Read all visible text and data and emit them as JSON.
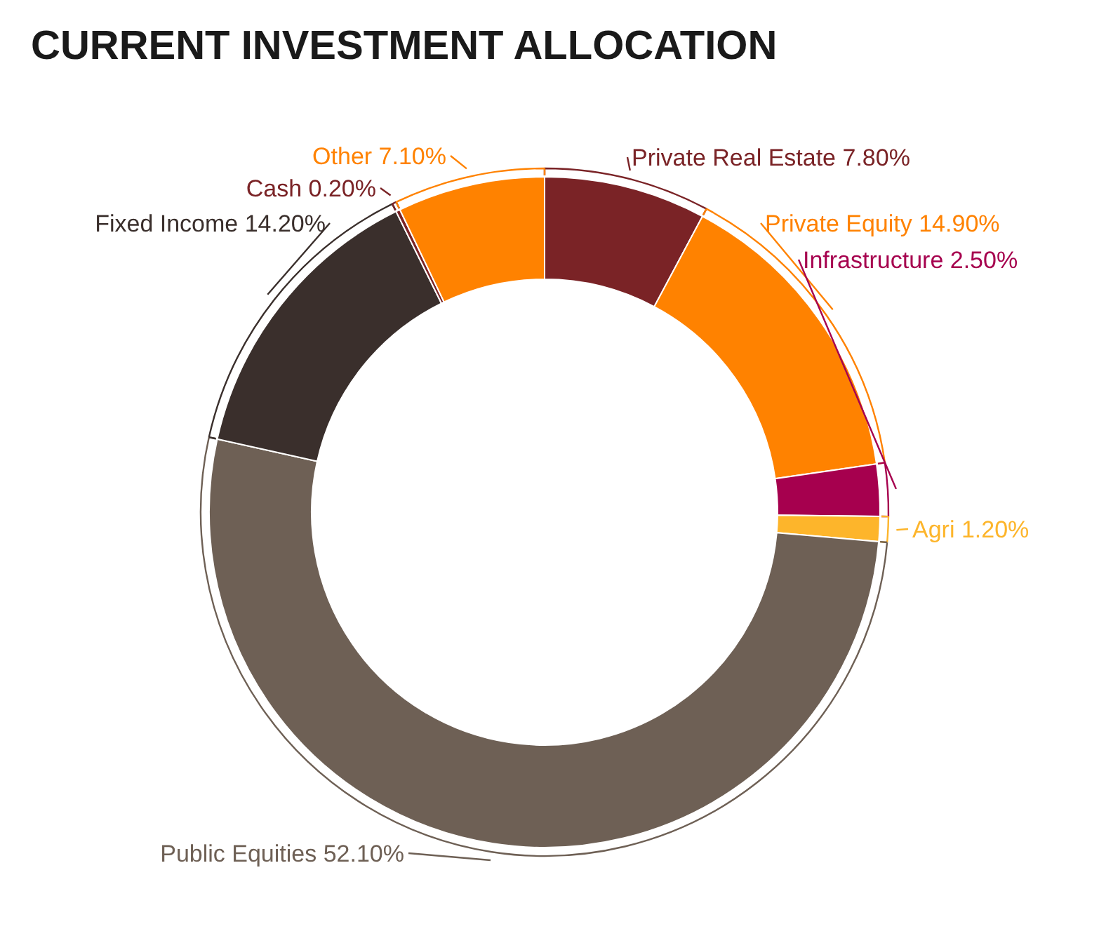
{
  "chart_data": {
    "type": "donut",
    "title": "CURRENT INVESTMENT ALLOCATION",
    "categories": [
      "Private Real Estate",
      "Private Equity",
      "Infrastructure",
      "Agri",
      "Public Equities",
      "Fixed Income",
      "Cash",
      "Other"
    ],
    "values": [
      7.8,
      14.9,
      2.5,
      1.2,
      52.1,
      14.2,
      0.2,
      7.1
    ],
    "value_labels": [
      "7.80%",
      "14.90%",
      "2.50%",
      "1.20%",
      "52.10%",
      "14.20%",
      "0.20%",
      "7.10%"
    ],
    "colors": [
      "#7a2326",
      "#ff8200",
      "#a6004e",
      "#fdb52b",
      "#6e6055",
      "#3a2f2c",
      "#7a2326",
      "#ff8200"
    ]
  }
}
